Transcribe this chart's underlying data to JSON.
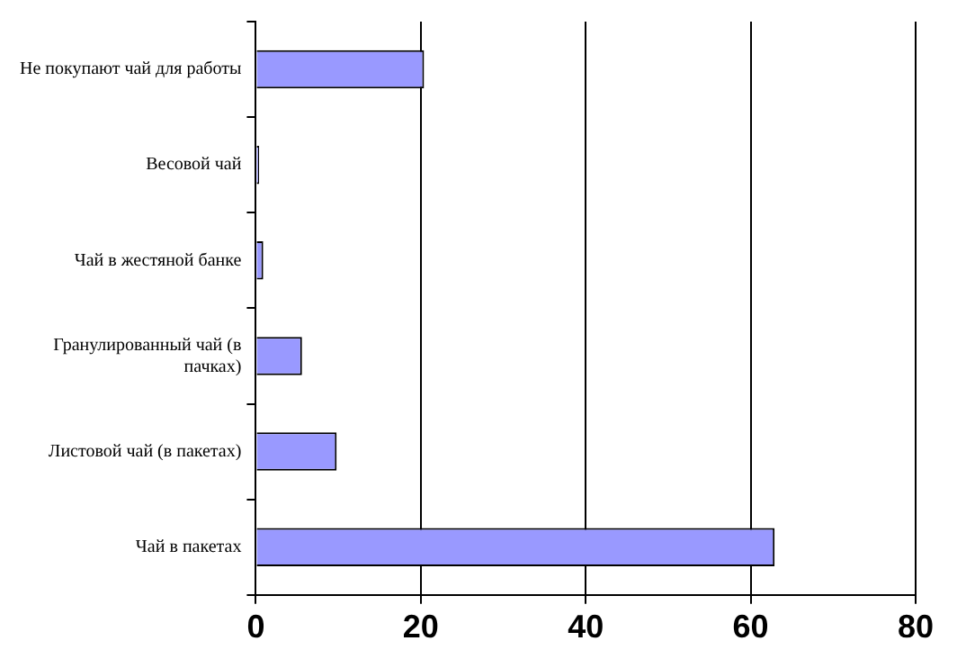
{
  "chart_data": {
    "type": "bar",
    "orientation": "horizontal",
    "categories": [
      "Не покупают чай для работы",
      "Весовой чай",
      "Чай в жестяной банке",
      "Гранулированный чай (в пачках)",
      "Листовой чай (в пакетах)",
      "Чай в пакетах"
    ],
    "values": [
      20.4,
      0.4,
      0.9,
      5.6,
      9.8,
      62.9
    ],
    "color": "#9999ff",
    "xlim": [
      0,
      80
    ],
    "xticks": [
      0,
      20,
      40,
      60,
      80
    ],
    "grid": "x"
  }
}
